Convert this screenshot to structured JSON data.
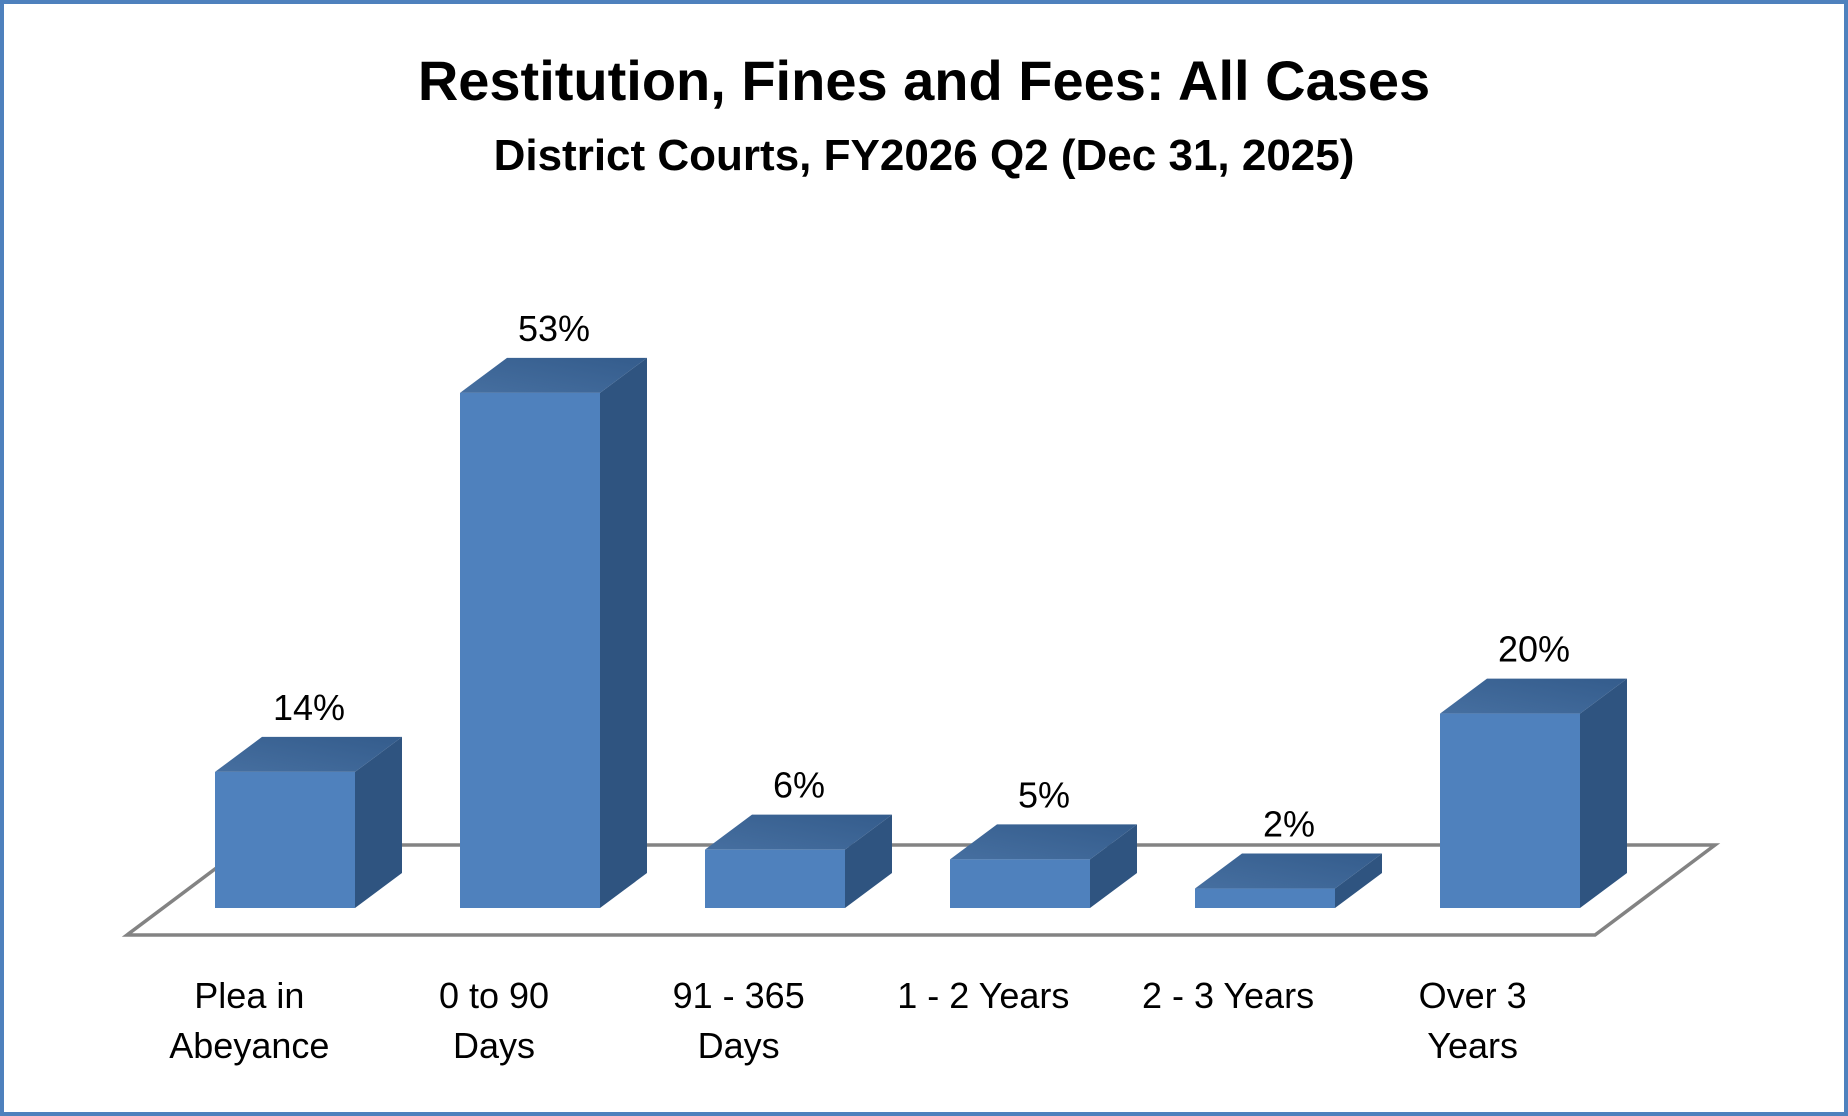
{
  "title": "Restitution, Fines and Fees: All Cases",
  "subtitle": "District Courts, FY2026 Q2 (Dec 31, 2025)",
  "chart_data": {
    "type": "bar",
    "style": "3d-column",
    "title": "Restitution, Fines and Fees: All Cases",
    "subtitle": "District Courts, FY2026 Q2 (Dec 31, 2025)",
    "categories": [
      "Plea in Abeyance",
      "0 to 90 Days",
      "91 - 365 Days",
      "1 - 2 Years",
      "2 - 3 Years",
      "Over 3 Years"
    ],
    "category_label_lines": [
      [
        "Plea in",
        "Abeyance"
      ],
      [
        "0 to 90",
        "Days"
      ],
      [
        "91 - 365",
        "Days"
      ],
      [
        "1 - 2 Years"
      ],
      [
        "2 - 3 Years"
      ],
      [
        "Over 3",
        "Years"
      ]
    ],
    "values": [
      14,
      53,
      6,
      5,
      2,
      20
    ],
    "data_labels": [
      "14%",
      "53%",
      "6%",
      "5%",
      "2%",
      "20%"
    ],
    "unit": "%",
    "ylim": [
      0,
      55
    ],
    "legend": "none",
    "gridlines": "none",
    "axes_visible": false,
    "colors": {
      "bar_front": "#4F81BD",
      "bar_side": "#2F5480",
      "bar_top_dark": "#345C8C",
      "bar_top_light": "#466FA0",
      "floor_outline": "#838383",
      "text": "#000000",
      "frame_border": "#4E81BD",
      "background": "#FFFFFF"
    }
  }
}
